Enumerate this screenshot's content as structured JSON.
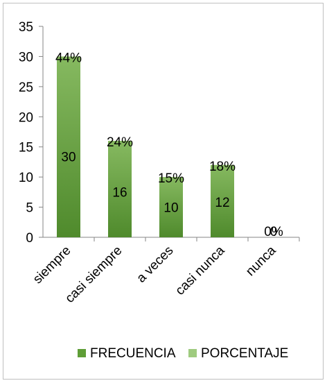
{
  "chart_data": {
    "type": "bar",
    "categories": [
      "siempre",
      "casi siempre",
      "a veces",
      "casi nunca",
      "nunca"
    ],
    "series": [
      {
        "name": "FRECUENCIA",
        "values": [
          30,
          16,
          10,
          12,
          0
        ],
        "color": "#5f9e37"
      },
      {
        "name": "PORCENTAJE",
        "values": [
          "44%",
          "24%",
          "15%",
          "18%",
          "0%"
        ],
        "color": "#9fcb7f"
      }
    ],
    "ylim": [
      0,
      35
    ],
    "yticks": [
      0,
      5,
      10,
      15,
      20,
      25,
      30,
      35
    ],
    "grid": false,
    "legend": "bottom"
  }
}
